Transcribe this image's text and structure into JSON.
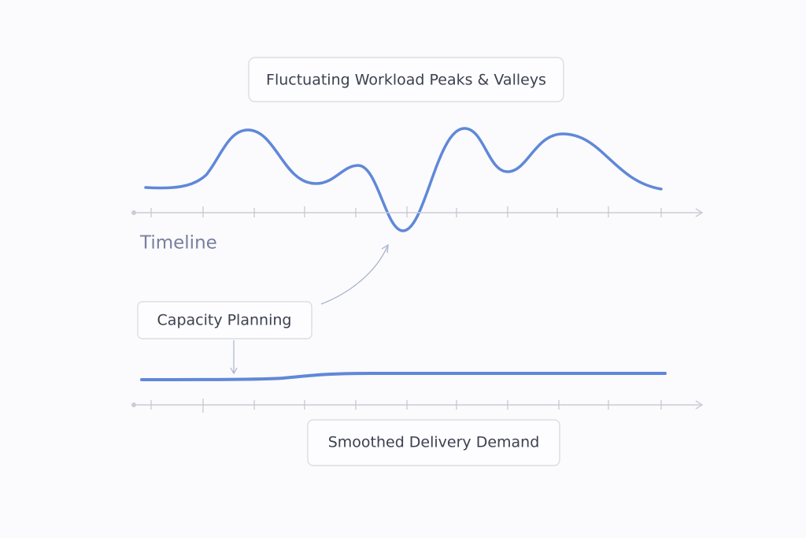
{
  "labels": {
    "top": "Fluctuating Workload Peaks & Valleys",
    "timeline": "Timeline",
    "capacity": "Capacity Planning",
    "bottom": "Smoothed Delivery Demand"
  }
}
